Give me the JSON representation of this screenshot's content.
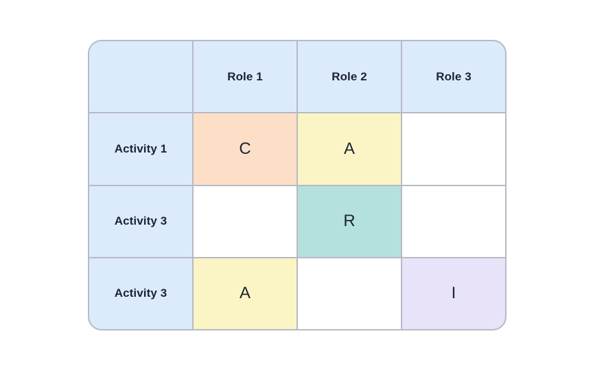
{
  "matrix": {
    "columns": [
      "",
      "Role 1",
      "Role 2",
      "Role 3"
    ],
    "rows": [
      {
        "label": "Activity 1",
        "cells": [
          {
            "value": "C",
            "color": "#fcdfc6"
          },
          {
            "value": "A",
            "color": "#fbf5c5"
          },
          {
            "value": "",
            "color": "#ffffff"
          }
        ]
      },
      {
        "label": "Activity 3",
        "cells": [
          {
            "value": "",
            "color": "#ffffff"
          },
          {
            "value": "R",
            "color": "#b5e1dd"
          },
          {
            "value": "",
            "color": "#ffffff"
          }
        ]
      },
      {
        "label": "Activity 3",
        "cells": [
          {
            "value": "A",
            "color": "#fbf5c5"
          },
          {
            "value": "",
            "color": "#ffffff"
          },
          {
            "value": "I",
            "color": "#e9e3f9"
          }
        ]
      }
    ],
    "colors": {
      "page_bg": "#ffffff",
      "header_bg": "#dcebfc",
      "grid_border": "#b6bac3",
      "text": "#1b2433",
      "cell_consulted": "#fcdfc6",
      "cell_accountable": "#fbf5c5",
      "cell_responsible": "#b5e1dd",
      "cell_informed": "#e9e3f9"
    }
  }
}
